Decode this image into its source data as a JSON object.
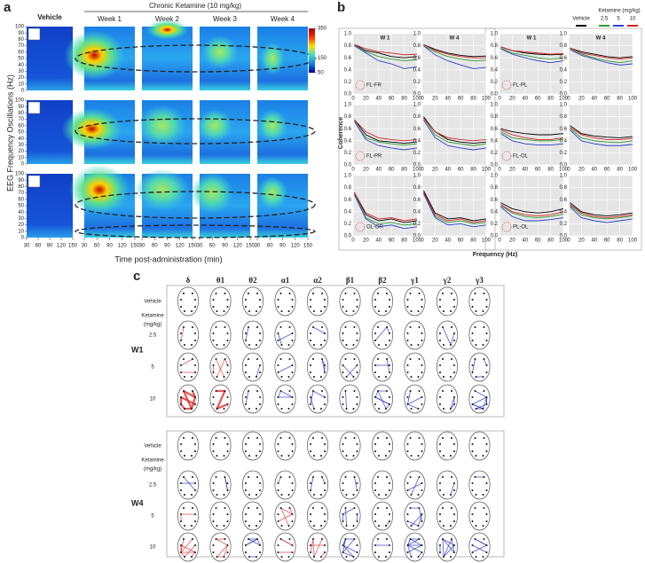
{
  "panel_a": {
    "label": "a",
    "vehicle": "Vehicle",
    "group": "Chronic Ketamine (10 mg/kg)",
    "weeks": [
      "Week 1",
      "Week 2",
      "Week 3",
      "Week 4"
    ],
    "ylabel": "EEG Frequency Oscillations (Hz)",
    "xlabel": "Time post-administration (min)",
    "yticks": [
      0,
      10,
      20,
      30,
      40,
      50,
      60,
      70,
      80,
      90,
      100
    ],
    "xticks": [
      30,
      60,
      90,
      120,
      150
    ],
    "colorbar_ticks": [
      350,
      150,
      50
    ]
  },
  "panel_b": {
    "label": "b",
    "ylabel": "Coherence",
    "xlabel": "Frequency (Hz)",
    "col_titles": [
      "W 1",
      "W 4",
      "W 1",
      "W 4"
    ],
    "legend_title": "Ketamine (mg/kg)",
    "series": [
      {
        "name": "Vehicle",
        "color": "#000000"
      },
      {
        "name": "2.5",
        "color": "#2e9a2e"
      },
      {
        "name": "5",
        "color": "#2a3fd0"
      },
      {
        "name": "10",
        "color": "#d42020"
      }
    ],
    "pairs": [
      "FL-FR",
      "FL-PL",
      "FL-PR",
      "FL-OL",
      "OL-OR",
      "PL-OL"
    ],
    "x": [
      2,
      20,
      40,
      60,
      80,
      100
    ],
    "xticks": [
      0,
      20,
      40,
      60,
      80,
      100
    ],
    "yticks": [
      {
        "value": 0,
        "label": "0.0"
      },
      {
        "value": 0.2,
        "label": "0.2"
      },
      {
        "value": 0.4,
        "label": "0.4"
      },
      {
        "value": 0.6,
        "label": "0.6"
      },
      {
        "value": 0.8,
        "label": "0.8"
      },
      {
        "value": 1,
        "label": "1.0"
      }
    ],
    "plots": [
      [
        [
          0.82,
          0.72,
          0.68,
          0.62,
          0.6,
          0.62
        ],
        [
          0.8,
          0.7,
          0.62,
          0.58,
          0.55,
          0.57
        ],
        [
          0.8,
          0.68,
          0.55,
          0.5,
          0.42,
          0.45
        ],
        [
          0.82,
          0.75,
          0.7,
          0.68,
          0.65,
          0.66
        ]
      ],
      [
        [
          0.82,
          0.74,
          0.68,
          0.64,
          0.62,
          0.63
        ],
        [
          0.8,
          0.7,
          0.62,
          0.58,
          0.55,
          0.56
        ],
        [
          0.8,
          0.65,
          0.55,
          0.48,
          0.42,
          0.44
        ],
        [
          0.82,
          0.72,
          0.66,
          0.62,
          0.6,
          0.6
        ]
      ],
      [
        [
          0.78,
          0.72,
          0.68,
          0.66,
          0.65,
          0.66
        ],
        [
          0.76,
          0.68,
          0.64,
          0.6,
          0.58,
          0.6
        ],
        [
          0.75,
          0.66,
          0.6,
          0.55,
          0.52,
          0.55
        ],
        [
          0.78,
          0.72,
          0.7,
          0.68,
          0.66,
          0.67
        ]
      ],
      [
        [
          0.76,
          0.7,
          0.66,
          0.62,
          0.6,
          0.62
        ],
        [
          0.74,
          0.66,
          0.6,
          0.55,
          0.52,
          0.55
        ],
        [
          0.74,
          0.64,
          0.58,
          0.52,
          0.48,
          0.5
        ],
        [
          0.76,
          0.68,
          0.64,
          0.6,
          0.58,
          0.6
        ]
      ],
      [
        [
          0.75,
          0.5,
          0.4,
          0.38,
          0.36,
          0.38
        ],
        [
          0.72,
          0.45,
          0.38,
          0.35,
          0.33,
          0.35
        ],
        [
          0.72,
          0.42,
          0.32,
          0.28,
          0.25,
          0.28
        ],
        [
          0.75,
          0.55,
          0.45,
          0.42,
          0.4,
          0.42
        ]
      ],
      [
        [
          0.8,
          0.55,
          0.42,
          0.38,
          0.36,
          0.38
        ],
        [
          0.78,
          0.5,
          0.38,
          0.35,
          0.32,
          0.35
        ],
        [
          0.75,
          0.45,
          0.32,
          0.28,
          0.25,
          0.28
        ],
        [
          0.78,
          0.55,
          0.45,
          0.42,
          0.4,
          0.42
        ]
      ],
      [
        [
          0.6,
          0.55,
          0.52,
          0.5,
          0.5,
          0.52
        ],
        [
          0.55,
          0.45,
          0.42,
          0.4,
          0.4,
          0.42
        ],
        [
          0.52,
          0.4,
          0.35,
          0.33,
          0.33,
          0.35
        ],
        [
          0.58,
          0.5,
          0.45,
          0.42,
          0.42,
          0.45
        ]
      ],
      [
        [
          0.65,
          0.52,
          0.48,
          0.46,
          0.45,
          0.47
        ],
        [
          0.6,
          0.45,
          0.4,
          0.38,
          0.37,
          0.4
        ],
        [
          0.58,
          0.4,
          0.35,
          0.32,
          0.32,
          0.34
        ],
        [
          0.62,
          0.5,
          0.45,
          0.42,
          0.42,
          0.44
        ]
      ],
      [
        [
          0.72,
          0.35,
          0.25,
          0.28,
          0.22,
          0.25
        ],
        [
          0.7,
          0.3,
          0.2,
          0.22,
          0.18,
          0.2
        ],
        [
          0.68,
          0.28,
          0.15,
          0.18,
          0.12,
          0.15
        ],
        [
          0.72,
          0.38,
          0.28,
          0.3,
          0.25,
          0.28
        ]
      ],
      [
        [
          0.75,
          0.38,
          0.28,
          0.3,
          0.25,
          0.28
        ],
        [
          0.72,
          0.32,
          0.22,
          0.25,
          0.2,
          0.22
        ],
        [
          0.7,
          0.3,
          0.18,
          0.2,
          0.15,
          0.18
        ],
        [
          0.72,
          0.35,
          0.25,
          0.28,
          0.22,
          0.25
        ]
      ],
      [
        [
          0.55,
          0.45,
          0.4,
          0.38,
          0.4,
          0.45
        ],
        [
          0.5,
          0.38,
          0.32,
          0.3,
          0.32,
          0.36
        ],
        [
          0.48,
          0.32,
          0.25,
          0.25,
          0.27,
          0.3
        ],
        [
          0.52,
          0.4,
          0.35,
          0.33,
          0.35,
          0.4
        ]
      ],
      [
        [
          0.55,
          0.4,
          0.35,
          0.33,
          0.35,
          0.38
        ],
        [
          0.5,
          0.35,
          0.3,
          0.28,
          0.3,
          0.33
        ],
        [
          0.48,
          0.3,
          0.25,
          0.22,
          0.25,
          0.28
        ],
        [
          0.52,
          0.38,
          0.32,
          0.3,
          0.32,
          0.35
        ]
      ]
    ]
  },
  "panel_c": {
    "label": "c",
    "bands": [
      "δ",
      "θ1",
      "θ2",
      "α1",
      "α2",
      "β1",
      "β2",
      "γ1",
      "γ2",
      "γ3"
    ],
    "groups": [
      {
        "name": "W1",
        "rows": [
          "Vehicle",
          "Ketamine",
          "(mg/kg)",
          "2.5",
          "5",
          "10"
        ]
      },
      {
        "name": "W4",
        "rows": [
          "Vehicle",
          "Ketamine",
          "(mg/kg)",
          "2.5",
          "5",
          "10"
        ]
      }
    ]
  }
}
